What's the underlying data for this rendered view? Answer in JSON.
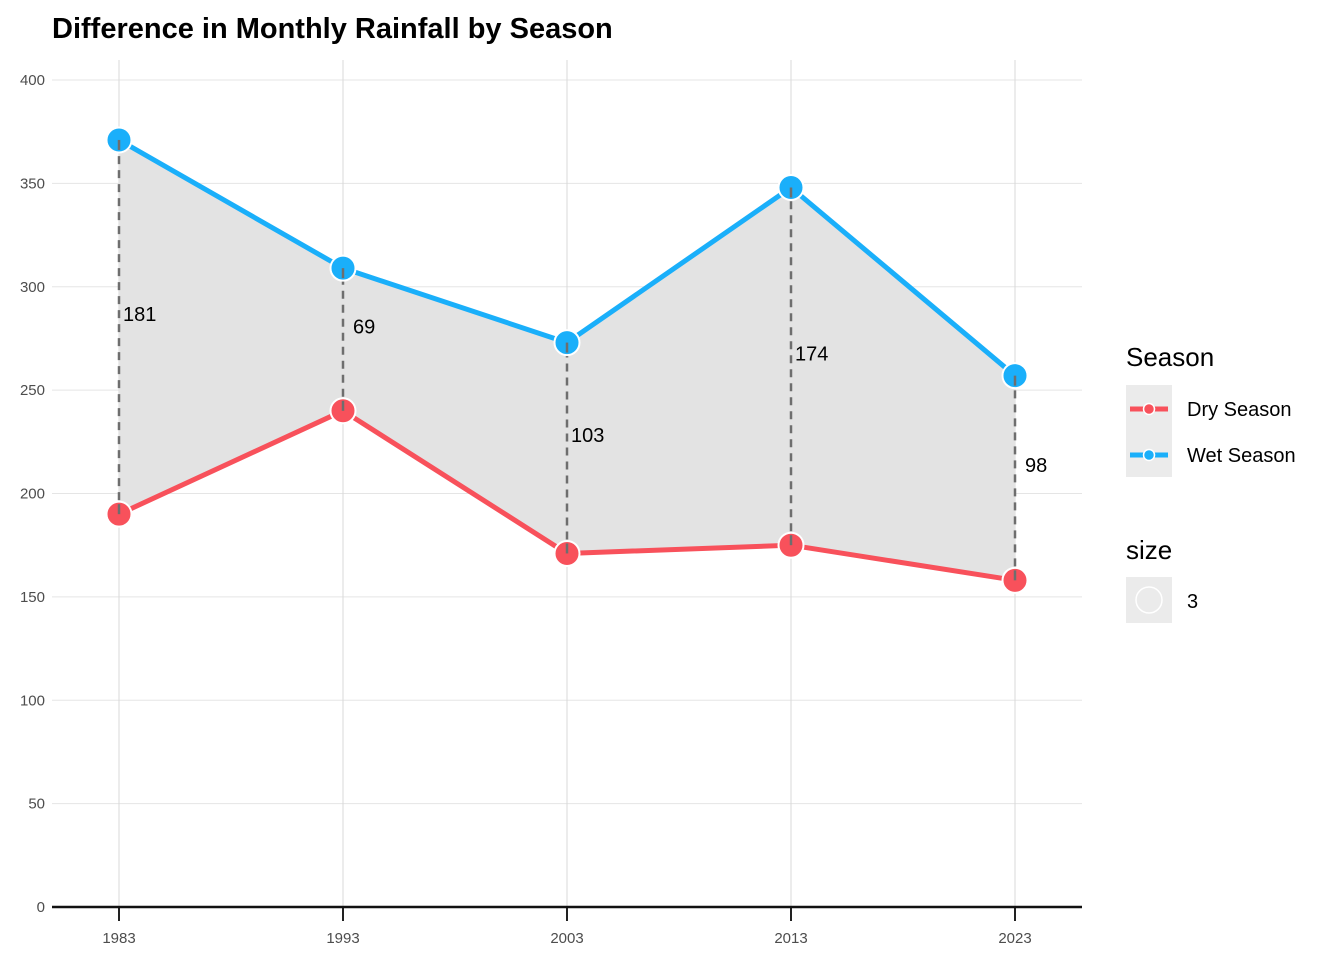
{
  "chart_data": {
    "type": "line",
    "title": "Difference in Monthly Rainfall by Season",
    "xlabel": "",
    "ylabel": "",
    "x": [
      1983,
      1993,
      2003,
      2013,
      2023
    ],
    "x_tick_labels": [
      "1983",
      "1993",
      "2003",
      "2013",
      "2023"
    ],
    "y_ticks": [
      0,
      50,
      100,
      150,
      200,
      250,
      300,
      350,
      400
    ],
    "y_tick_labels": [
      "0",
      "50",
      "100",
      "150",
      "200",
      "250",
      "300",
      "350",
      "400"
    ],
    "ylim": [
      0,
      400
    ],
    "grid": true,
    "series": [
      {
        "name": "Dry Season",
        "color": "#F8515B",
        "values": [
          190,
          240,
          171,
          175,
          158
        ]
      },
      {
        "name": "Wet Season",
        "color": "#1AAFFA",
        "values": [
          371,
          309,
          273,
          348,
          257
        ]
      }
    ],
    "ribbon": {
      "fill": "#E3E3E3",
      "between": [
        "Dry Season",
        "Wet Season"
      ]
    },
    "difference_labels": [
      "181",
      "69",
      "103",
      "174",
      "98"
    ],
    "connector_style": "dashed",
    "legend": {
      "position": "right",
      "groups": [
        {
          "title": "Season",
          "entries": [
            "Dry Season",
            "Wet Season"
          ]
        },
        {
          "title": "size",
          "entries": [
            "3"
          ]
        }
      ]
    }
  }
}
